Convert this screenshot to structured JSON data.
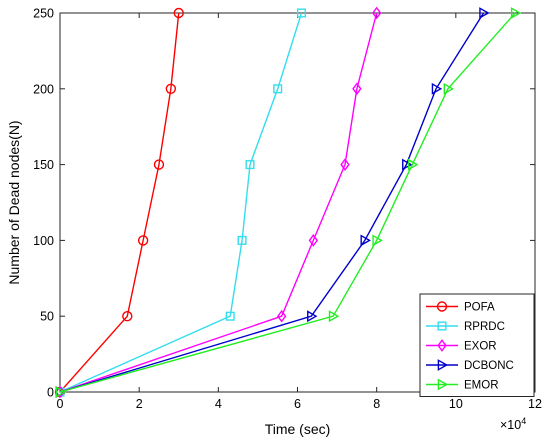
{
  "chart_data": {
    "type": "line",
    "title": "",
    "xlabel": "Time (sec)",
    "ylabel": "Number of Dead nodes(N)",
    "x_exponent_label": "×10",
    "x_exponent_power": "4",
    "x_scale": 10000,
    "xlim": [
      0,
      120000
    ],
    "ylim": [
      0,
      250
    ],
    "x_ticks": [
      0,
      20000,
      40000,
      60000,
      80000,
      100000,
      120000
    ],
    "x_tick_labels": [
      "0",
      "2",
      "4",
      "6",
      "8",
      "10",
      "12"
    ],
    "y_ticks": [
      0,
      50,
      100,
      150,
      200,
      250
    ],
    "y_tick_labels": [
      "0",
      "50",
      "100",
      "150",
      "200",
      "250"
    ],
    "grid": false,
    "legend_position": "bottom-right",
    "series": [
      {
        "name": "POFA",
        "color": "#ff0000",
        "marker": "circle",
        "x": [
          0,
          17000,
          21000,
          25000,
          28000,
          30000
        ],
        "y": [
          0,
          50,
          100,
          150,
          200,
          250
        ]
      },
      {
        "name": "RPRDC",
        "color": "#33ddee",
        "marker": "square",
        "x": [
          0,
          43000,
          46000,
          48000,
          55000,
          61000
        ],
        "y": [
          0,
          50,
          100,
          150,
          200,
          250
        ]
      },
      {
        "name": "EXOR",
        "color": "#ff00ff",
        "marker": "diamond",
        "x": [
          0,
          56000,
          64000,
          72000,
          75000,
          80000
        ],
        "y": [
          0,
          50,
          100,
          150,
          200,
          250
        ]
      },
      {
        "name": "DCBONC",
        "color": "#0000cc",
        "marker": "triangle-right",
        "x": [
          0,
          63500,
          77000,
          87500,
          95000,
          107000
        ],
        "y": [
          0,
          50,
          100,
          150,
          200,
          250
        ]
      },
      {
        "name": "EMOR",
        "color": "#22ee22",
        "marker": "triangle-right",
        "x": [
          0,
          69000,
          80000,
          89000,
          98000,
          115000
        ],
        "y": [
          0,
          50,
          100,
          150,
          200,
          250
        ]
      }
    ]
  }
}
